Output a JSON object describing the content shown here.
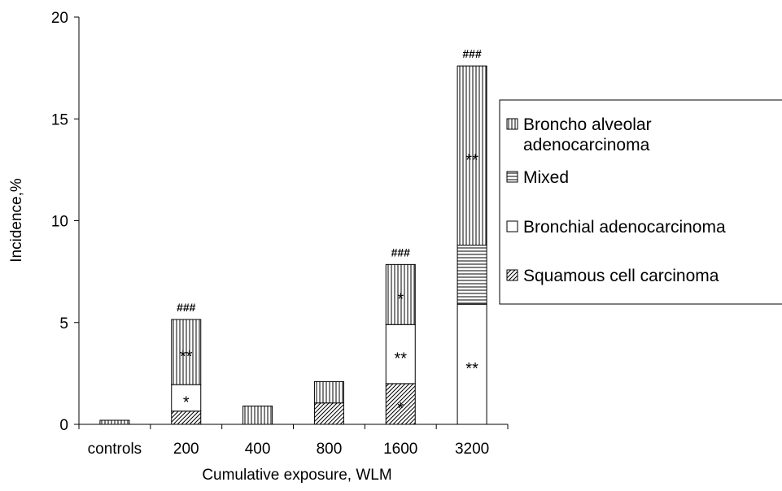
{
  "chart_data": {
    "type": "bar",
    "stacked": true,
    "categories": [
      "controls",
      "200",
      "400",
      "800",
      "1600",
      "3200"
    ],
    "xlabel": "Cumulative exposure, WLM",
    "ylabel": "Incidence,%",
    "ylim": [
      0,
      20
    ],
    "yticks": [
      0,
      5,
      10,
      15,
      20
    ],
    "grid": false,
    "legend_position": "right",
    "series": [
      {
        "name": "Squamous cell carcinoma",
        "pattern": "diagonal",
        "values": [
          0,
          0.65,
          0,
          1.05,
          2.0,
          0
        ]
      },
      {
        "name": "Bronchial adenocarcinoma",
        "pattern": "none",
        "values": [
          0,
          1.3,
          0,
          0,
          2.9,
          5.9
        ]
      },
      {
        "name": "Mixed",
        "pattern": "horizontal",
        "values": [
          0,
          0,
          0,
          0,
          0,
          2.9
        ]
      },
      {
        "name": "Broncho alveolar adenocarcinoma",
        "pattern": "vertical",
        "values": [
          0.2,
          3.2,
          0.9,
          1.05,
          2.95,
          8.8
        ]
      }
    ],
    "legend": [
      {
        "lines": [
          "Broncho alveolar",
          "adenocarcinoma"
        ],
        "pattern": "vertical"
      },
      {
        "lines": [
          "Mixed"
        ],
        "pattern": "horizontal"
      },
      {
        "lines": [
          "Bronchial adenocarcinoma"
        ],
        "pattern": "none"
      },
      {
        "lines": [
          "Squamous cell carcinoma"
        ],
        "pattern": "diagonal"
      }
    ],
    "annotations": [
      {
        "category": "200",
        "series": 3,
        "text": "**"
      },
      {
        "category": "200",
        "series": 1,
        "text": "*"
      },
      {
        "category": "1600",
        "series": 3,
        "text": "*"
      },
      {
        "category": "1600",
        "series": 1,
        "text": "**"
      },
      {
        "category": "1600",
        "series": 0,
        "text": "*"
      },
      {
        "category": "3200",
        "series": 3,
        "text": "**"
      },
      {
        "category": "3200",
        "series": 1,
        "text": "**"
      }
    ],
    "totals_markers": [
      {
        "category": "200",
        "text": "###"
      },
      {
        "category": "1600",
        "text": "###"
      },
      {
        "category": "3200",
        "text": "###"
      }
    ]
  }
}
